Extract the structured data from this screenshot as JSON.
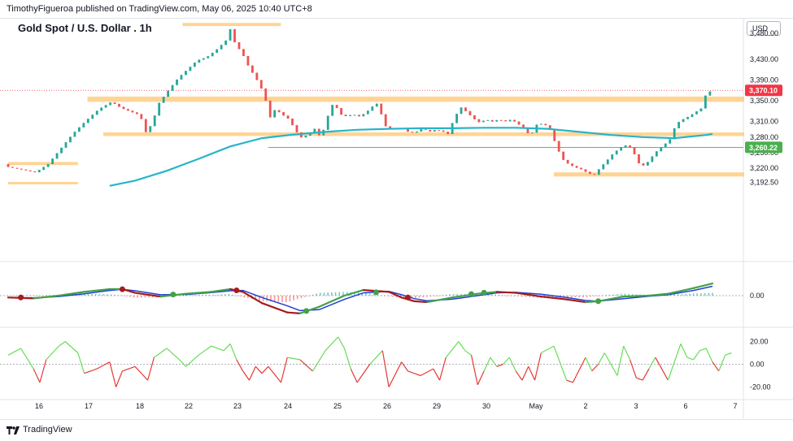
{
  "header": {
    "publisher_line": "TimothyFigueroa published on TradingView.com, May 06, 2025 10:40 UTC+8"
  },
  "chart_title": "Gold Spot / U.S. Dollar . 1h",
  "currency_label": "USD",
  "footer": {
    "brand": "TradingView"
  },
  "colors": {
    "up": "#26a69a",
    "down": "#ef5350",
    "zone": "#ffcc80",
    "ma": "#26b5c8",
    "macd_fast": "#43a047",
    "macd_slow": "#1e3fd8",
    "macd_down": "#a61c1c",
    "rsi_up": "#66dd55",
    "rsi_down": "#e53935",
    "price_tag": "#f23645",
    "support_tag": "#4caf50"
  },
  "chart_data": {
    "type": "candlestick",
    "x_ticks": [
      "16",
      "17",
      "18",
      "22",
      "23",
      "24",
      "25",
      "26",
      "29",
      "30",
      "May",
      "2",
      "3",
      "6",
      "7"
    ],
    "price_axis": {
      "ticks": [
        "3,520.00",
        "3,480.00",
        "3,430.00",
        "3,390.00",
        "3,350.00",
        "3,310.00",
        "3,280.00",
        "3,250.00",
        "3,220.00",
        "3,192.50"
      ],
      "ylim": [
        3185,
        3525
      ]
    },
    "close_path": [
      [
        0,
        3228
      ],
      [
        3,
        3221
      ],
      [
        5,
        3216
      ],
      [
        7,
        3232
      ],
      [
        9,
        3262
      ],
      [
        11,
        3292
      ],
      [
        13,
        3316
      ],
      [
        15,
        3338
      ],
      [
        17,
        3352
      ],
      [
        18.5,
        3340
      ],
      [
        20,
        3333
      ],
      [
        21.5,
        3326
      ],
      [
        22.5,
        3290
      ],
      [
        23.5,
        3315
      ],
      [
        24.5,
        3350
      ],
      [
        26,
        3375
      ],
      [
        27.5,
        3398
      ],
      [
        29,
        3415
      ],
      [
        30.5,
        3432
      ],
      [
        32,
        3438
      ],
      [
        33.5,
        3452
      ],
      [
        35,
        3470
      ],
      [
        35.8,
        3495
      ],
      [
        36.5,
        3462
      ],
      [
        37.5,
        3448
      ],
      [
        38.5,
        3422
      ],
      [
        40,
        3392
      ],
      [
        41,
        3368
      ],
      [
        42,
        3322
      ],
      [
        42.8,
        3338
      ],
      [
        43.8,
        3328
      ],
      [
        45,
        3318
      ],
      [
        46,
        3296
      ],
      [
        47,
        3282
      ],
      [
        48,
        3290
      ],
      [
        49,
        3300
      ],
      [
        50,
        3282
      ],
      [
        51,
        3322
      ],
      [
        52,
        3352
      ],
      [
        53,
        3328
      ],
      [
        54,
        3324
      ],
      [
        55,
        3328
      ],
      [
        56,
        3324
      ],
      [
        57,
        3330
      ],
      [
        58,
        3342
      ],
      [
        59,
        3350
      ],
      [
        60,
        3306
      ],
      [
        61,
        3300
      ],
      [
        62,
        3302
      ],
      [
        63,
        3300
      ],
      [
        64,
        3292
      ],
      [
        65,
        3294
      ],
      [
        66,
        3302
      ],
      [
        67,
        3294
      ],
      [
        68,
        3298
      ],
      [
        69,
        3296
      ],
      [
        70,
        3290
      ],
      [
        71,
        3320
      ],
      [
        72,
        3342
      ],
      [
        73,
        3332
      ],
      [
        74,
        3320
      ],
      [
        75,
        3312
      ],
      [
        76,
        3318
      ],
      [
        77,
        3314
      ],
      [
        78,
        3318
      ],
      [
        79,
        3314
      ],
      [
        80,
        3318
      ],
      [
        81,
        3310
      ],
      [
        82,
        3300
      ],
      [
        83,
        3286
      ],
      [
        84,
        3308
      ],
      [
        85,
        3310
      ],
      [
        86,
        3302
      ],
      [
        87,
        3270
      ],
      [
        88,
        3242
      ],
      [
        89,
        3232
      ],
      [
        90,
        3226
      ],
      [
        91,
        3222
      ],
      [
        92,
        3215
      ],
      [
        93,
        3210
      ],
      [
        94,
        3225
      ],
      [
        95,
        3238
      ],
      [
        96,
        3252
      ],
      [
        97,
        3262
      ],
      [
        98,
        3268
      ],
      [
        99,
        3262
      ],
      [
        100,
        3234
      ],
      [
        101,
        3228
      ],
      [
        102,
        3244
      ],
      [
        103,
        3258
      ],
      [
        104,
        3268
      ],
      [
        105,
        3280
      ],
      [
        106,
        3310
      ],
      [
        107,
        3318
      ],
      [
        108,
        3324
      ],
      [
        109,
        3332
      ],
      [
        110,
        3340
      ],
      [
        110.8,
        3372
      ]
    ],
    "moving_average": [
      [
        16,
        3186
      ],
      [
        20,
        3196
      ],
      [
        25,
        3215
      ],
      [
        30,
        3238
      ],
      [
        35,
        3262
      ],
      [
        40,
        3278
      ],
      [
        45,
        3285
      ],
      [
        50,
        3290
      ],
      [
        55,
        3294
      ],
      [
        60,
        3296
      ],
      [
        65,
        3297
      ],
      [
        70,
        3297
      ],
      [
        75,
        3298
      ],
      [
        80,
        3298
      ],
      [
        85,
        3296
      ],
      [
        90,
        3290
      ],
      [
        95,
        3284
      ],
      [
        100,
        3280
      ],
      [
        105,
        3278
      ],
      [
        110,
        3284
      ],
      [
        111,
        3286
      ]
    ],
    "zones": [
      {
        "x0": 0,
        "x1": 11,
        "y0": 3226,
        "y1": 3232
      },
      {
        "x0": 27.5,
        "x1": 43,
        "y0": 3494,
        "y1": 3500
      },
      {
        "x0": 12.5,
        "x1": 116,
        "y0": 3348,
        "y1": 3358
      },
      {
        "x0": 15,
        "x1": 116,
        "y0": 3282,
        "y1": 3289
      },
      {
        "x0": 86,
        "x1": 116,
        "y0": 3204,
        "y1": 3212
      }
    ],
    "blue_thin_line": {
      "x0": 0,
      "x1": 11,
      "y": 3192
    },
    "support_line": {
      "x0": 41,
      "y": 3260.22
    },
    "dotted_price_line": {
      "y": 3370.1
    },
    "price_tags": [
      {
        "label": "3,370.10",
        "y": 3370.1,
        "color": "#f23645"
      },
      {
        "label": "3,260.22",
        "y": 3260.22,
        "color": "#4caf50"
      }
    ],
    "macd": {
      "zero_label": "0.00",
      "fast": [
        [
          0,
          -1
        ],
        [
          4,
          -1.5
        ],
        [
          8,
          0
        ],
        [
          12,
          2
        ],
        [
          16,
          3.5
        ],
        [
          18,
          3.5
        ],
        [
          20,
          1.5
        ],
        [
          24,
          -0.5
        ],
        [
          28,
          1
        ],
        [
          32,
          2
        ],
        [
          35,
          3.5
        ],
        [
          37,
          2
        ],
        [
          40,
          -4
        ],
        [
          44,
          -9
        ],
        [
          46,
          -9.5
        ],
        [
          49,
          -6
        ],
        [
          53,
          0
        ],
        [
          56,
          3
        ],
        [
          60,
          2
        ],
        [
          62,
          -1
        ],
        [
          64,
          -3
        ],
        [
          66,
          -3.5
        ],
        [
          70,
          -1
        ],
        [
          74,
          1
        ],
        [
          77,
          2
        ],
        [
          80,
          1.5
        ],
        [
          84,
          -0.5
        ],
        [
          88,
          -2
        ],
        [
          91,
          -3.5
        ],
        [
          93,
          -3
        ],
        [
          97,
          -0.5
        ],
        [
          101,
          0
        ],
        [
          104,
          1
        ],
        [
          108,
          4
        ],
        [
          111,
          6.5
        ]
      ],
      "slow": [
        [
          0,
          -1
        ],
        [
          4,
          -1.2
        ],
        [
          8,
          -0.5
        ],
        [
          12,
          1
        ],
        [
          16,
          2.8
        ],
        [
          18,
          3.4
        ],
        [
          20,
          2.6
        ],
        [
          24,
          0.5
        ],
        [
          28,
          0.6
        ],
        [
          32,
          1.6
        ],
        [
          35,
          2.6
        ],
        [
          37,
          2.8
        ],
        [
          40,
          -1
        ],
        [
          44,
          -5.5
        ],
        [
          46,
          -8
        ],
        [
          49,
          -7.5
        ],
        [
          53,
          -2
        ],
        [
          56,
          1.5
        ],
        [
          60,
          2.3
        ],
        [
          62,
          0.5
        ],
        [
          64,
          -1.6
        ],
        [
          66,
          -2.8
        ],
        [
          70,
          -1.9
        ],
        [
          74,
          0
        ],
        [
          77,
          1.5
        ],
        [
          80,
          1.8
        ],
        [
          84,
          0.8
        ],
        [
          88,
          -1
        ],
        [
          91,
          -2.6
        ],
        [
          93,
          -3
        ],
        [
          97,
          -1.6
        ],
        [
          101,
          -0.3
        ],
        [
          104,
          0.5
        ],
        [
          108,
          2.8
        ],
        [
          111,
          5
        ]
      ],
      "crosses": [
        [
          2,
          -1
        ],
        [
          18,
          3.4
        ],
        [
          26,
          0.6
        ],
        [
          36,
          2.8
        ],
        [
          47,
          -8.2
        ],
        [
          58,
          1.8
        ],
        [
          63,
          -1
        ],
        [
          73,
          0.8
        ],
        [
          75,
          1.6
        ],
        [
          93,
          -3
        ]
      ]
    },
    "rsi": {
      "ticks": [
        "20.00",
        "0.00",
        "-20.00"
      ],
      "series": [
        [
          0,
          8
        ],
        [
          2,
          14
        ],
        [
          4,
          -4
        ],
        [
          5,
          -16
        ],
        [
          6,
          4
        ],
        [
          8,
          16
        ],
        [
          9,
          20
        ],
        [
          11,
          10
        ],
        [
          12,
          -8
        ],
        [
          14,
          -4
        ],
        [
          16,
          2
        ],
        [
          17,
          -20
        ],
        [
          18,
          -6
        ],
        [
          20,
          -2
        ],
        [
          22,
          -14
        ],
        [
          23,
          6
        ],
        [
          25,
          14
        ],
        [
          27,
          4
        ],
        [
          28,
          -2
        ],
        [
          30,
          8
        ],
        [
          32,
          16
        ],
        [
          34,
          12
        ],
        [
          35,
          18
        ],
        [
          36,
          4
        ],
        [
          37,
          -6
        ],
        [
          38,
          -14
        ],
        [
          39,
          -2
        ],
        [
          40,
          -8
        ],
        [
          41,
          -2
        ],
        [
          43,
          -16
        ],
        [
          44,
          6
        ],
        [
          46,
          4
        ],
        [
          48,
          -6
        ],
        [
          50,
          12
        ],
        [
          52,
          24
        ],
        [
          53,
          14
        ],
        [
          54,
          -4
        ],
        [
          55,
          -16
        ],
        [
          57,
          0
        ],
        [
          59,
          12
        ],
        [
          60,
          -20
        ],
        [
          62,
          2
        ],
        [
          63,
          -6
        ],
        [
          65,
          -10
        ],
        [
          67,
          -4
        ],
        [
          68,
          -14
        ],
        [
          69,
          6
        ],
        [
          71,
          20
        ],
        [
          72,
          12
        ],
        [
          73,
          8
        ],
        [
          74,
          -18
        ],
        [
          75,
          -6
        ],
        [
          76,
          6
        ],
        [
          77,
          -2
        ],
        [
          78,
          0
        ],
        [
          79,
          6
        ],
        [
          80,
          -6
        ],
        [
          81,
          -14
        ],
        [
          82,
          -2
        ],
        [
          83,
          -14
        ],
        [
          84,
          10
        ],
        [
          86,
          16
        ],
        [
          88,
          -14
        ],
        [
          89,
          -16
        ],
        [
          91,
          6
        ],
        [
          92,
          -6
        ],
        [
          93,
          0
        ],
        [
          94,
          10
        ],
        [
          96,
          -10
        ],
        [
          97,
          16
        ],
        [
          98,
          4
        ],
        [
          99,
          -12
        ],
        [
          100,
          -14
        ],
        [
          101,
          -4
        ],
        [
          102,
          6
        ],
        [
          104,
          -14
        ],
        [
          106,
          18
        ],
        [
          107,
          6
        ],
        [
          108,
          4
        ],
        [
          109,
          12
        ],
        [
          110,
          14
        ],
        [
          111,
          2
        ],
        [
          112,
          -6
        ],
        [
          113,
          8
        ],
        [
          114,
          10
        ]
      ]
    }
  }
}
